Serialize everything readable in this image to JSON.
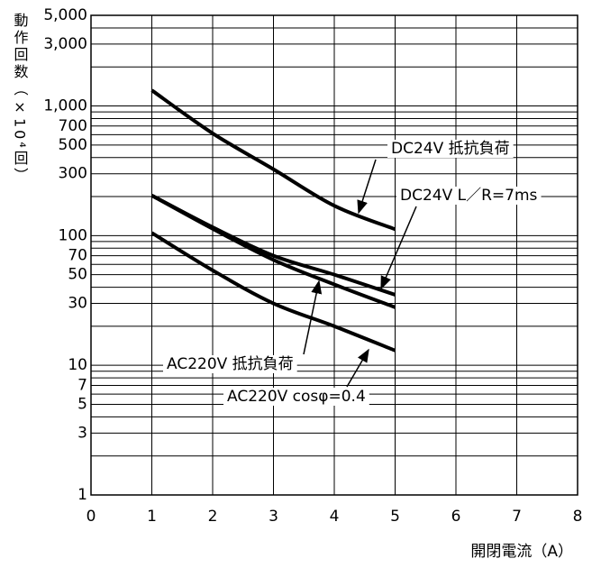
{
  "chart_data": {
    "type": "line",
    "y_label": "動作回数（×10⁴回）",
    "x_label": "開閉電流（A）",
    "log_y": true,
    "grid": true,
    "x": [
      1,
      2,
      3,
      4,
      5
    ],
    "series": [
      {
        "name": "DC24V 抵抗負荷",
        "color": "#000000",
        "values": [
          1320,
          615,
          325,
          170,
          112
        ]
      },
      {
        "name": "DC24V L／R=7ms",
        "color": "#000000",
        "values": [
          204,
          116,
          70,
          50,
          35
        ]
      },
      {
        "name": "AC220V 抵抗負荷",
        "color": "#000000",
        "values": [
          204,
          113,
          65,
          42,
          28
        ]
      },
      {
        "name": "AC220V cosφ=0.4",
        "color": "#000000",
        "values": [
          105,
          54,
          30,
          20,
          13
        ]
      }
    ],
    "xlim": [
      0,
      8
    ],
    "xticks": [
      0,
      1,
      2,
      3,
      4,
      5,
      6,
      7,
      8
    ],
    "ylim": [
      1,
      5000
    ],
    "yticks": [
      1,
      3,
      5,
      7,
      10,
      30,
      50,
      70,
      100,
      300,
      500,
      700,
      {
        "value": 1000,
        "label": "1,000"
      },
      {
        "value": 3000,
        "label": "3,000"
      },
      {
        "value": 5000,
        "label": "5,000"
      }
    ],
    "minor_grid": [
      2,
      4,
      6,
      8,
      9,
      20,
      40,
      60,
      80,
      90,
      200,
      400,
      600,
      800,
      900,
      2000,
      4000
    ]
  }
}
